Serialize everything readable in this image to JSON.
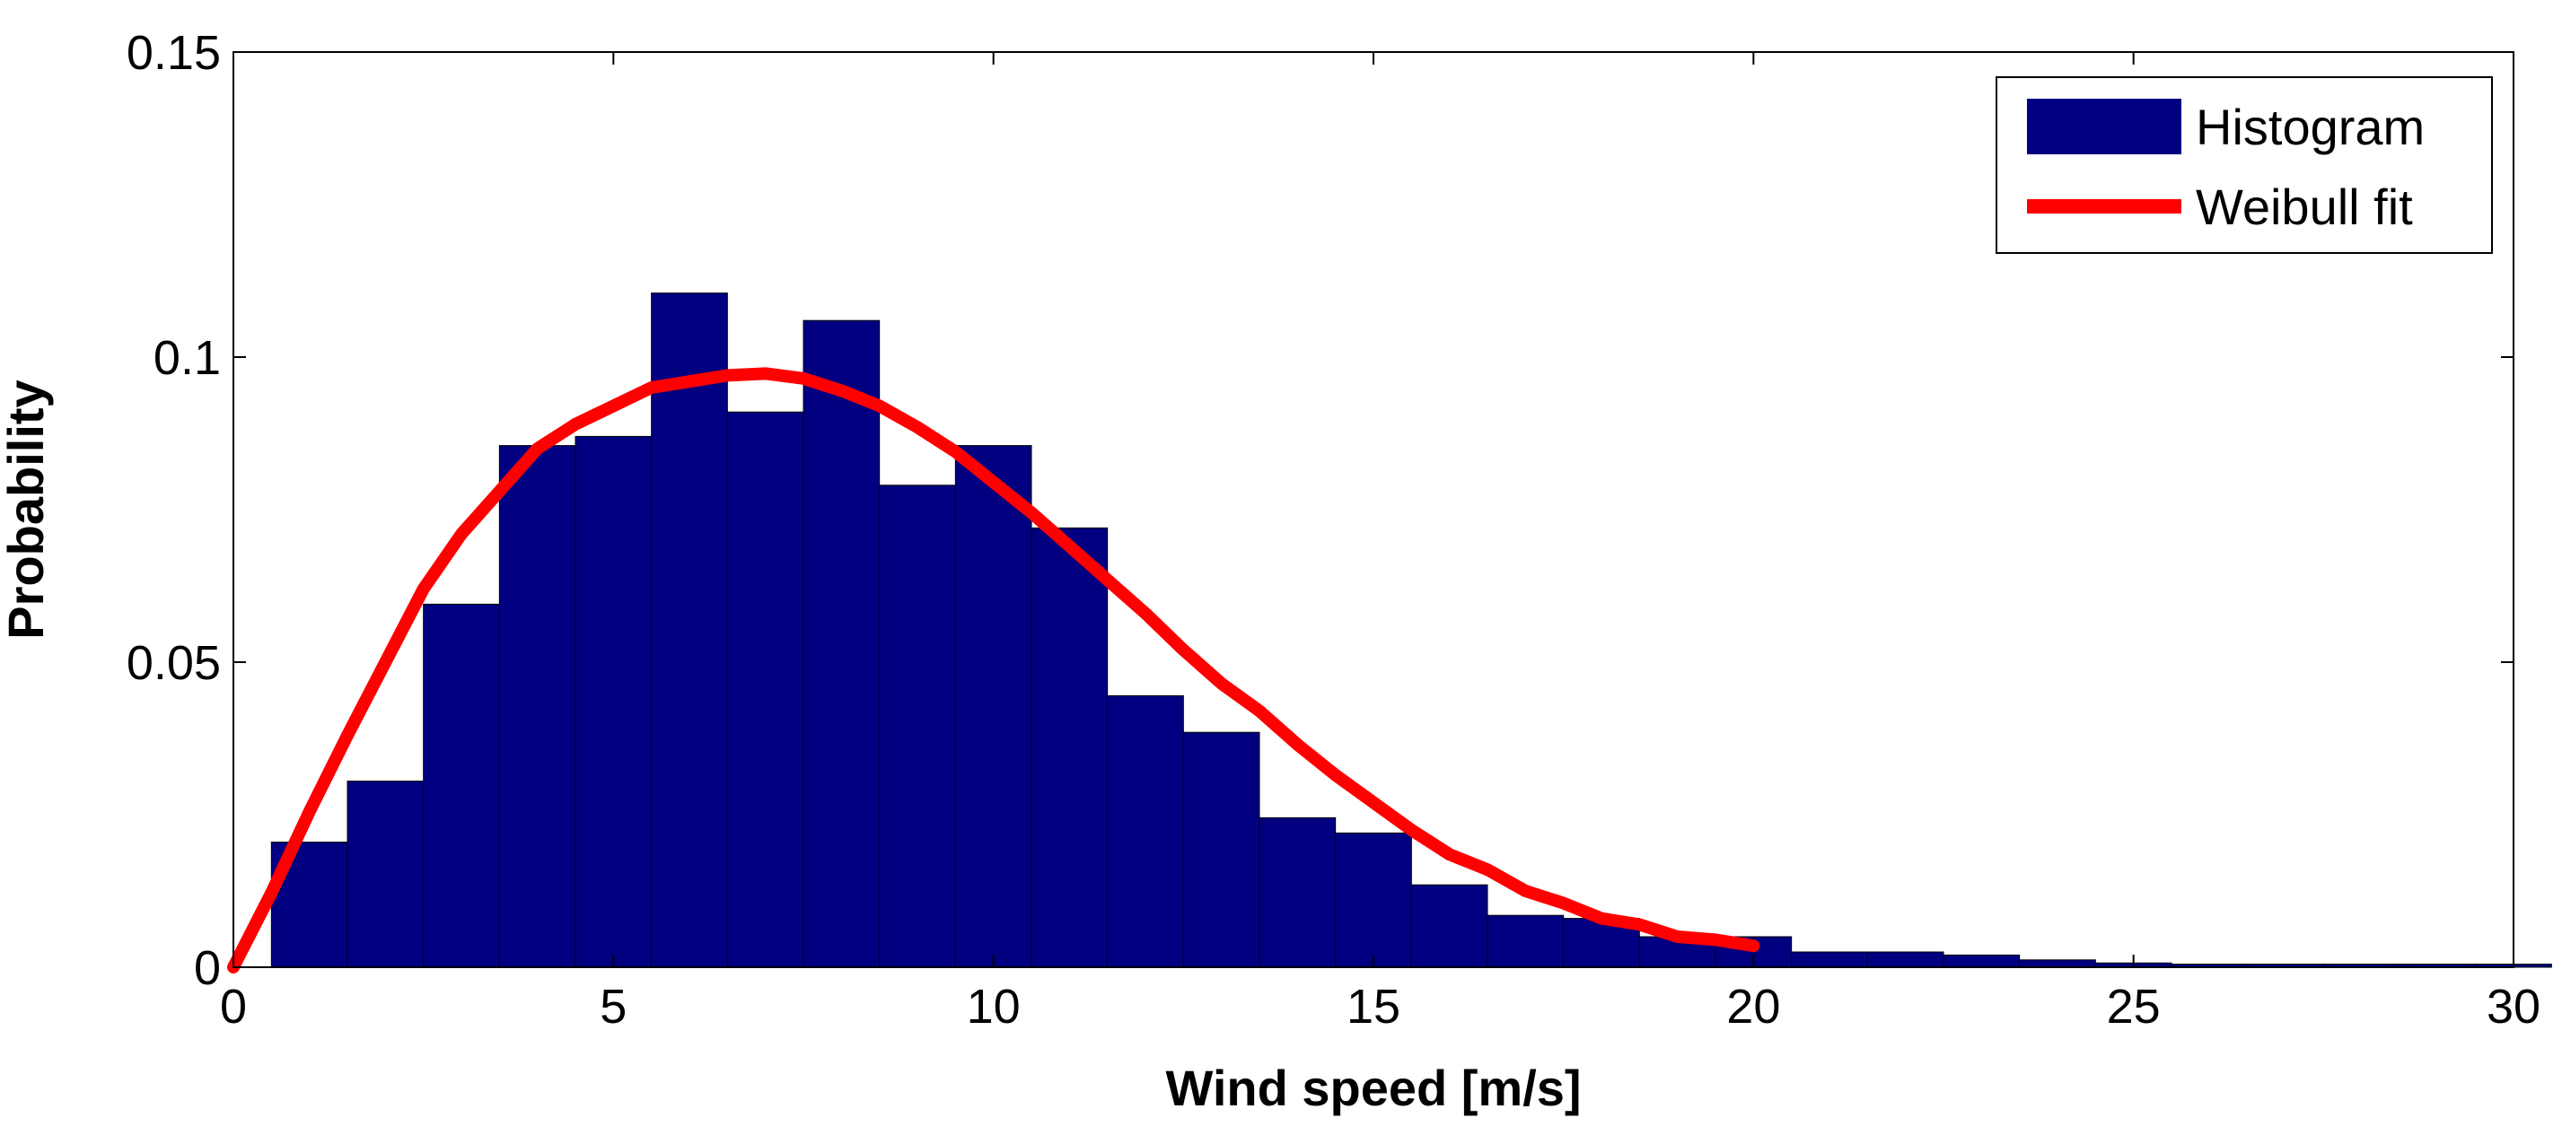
{
  "chart_data": {
    "type": "bar",
    "title": "",
    "xlabel": "Wind speed [m/s]",
    "ylabel": "Probability",
    "xlim": [
      0,
      30
    ],
    "ylim": [
      0,
      0.15
    ],
    "x_ticks": [
      0,
      5,
      10,
      15,
      20,
      25,
      30
    ],
    "x_tick_labels": [
      "0",
      "5",
      "10",
      "15",
      "20",
      "25",
      "30"
    ],
    "y_ticks": [
      0,
      0.05,
      0.1,
      0.15
    ],
    "y_tick_labels": [
      "0",
      "0.05",
      "0.1",
      "0.15"
    ],
    "grid": false,
    "legend_position": "top-right",
    "series": [
      {
        "name": "Histogram",
        "kind": "bar",
        "color": "#000080",
        "bin_width": 1,
        "x": [
          1,
          2,
          3,
          4,
          5,
          6,
          7,
          8,
          9,
          10,
          11,
          12,
          13,
          14,
          15,
          16,
          17,
          18,
          19,
          20,
          21,
          22,
          23,
          24,
          25,
          26,
          27,
          28,
          29,
          30
        ],
        "values": [
          0.0205,
          0.0305,
          0.0595,
          0.0855,
          0.087,
          0.1105,
          0.091,
          0.106,
          0.079,
          0.0855,
          0.072,
          0.0445,
          0.0385,
          0.0245,
          0.022,
          0.0135,
          0.0085,
          0.008,
          0.005,
          0.005,
          0.0025,
          0.0025,
          0.002,
          0.0012,
          0.0007,
          0.0005,
          0.0005,
          0.0005,
          0.0005,
          0.0005
        ]
      },
      {
        "name": "Weibull fit",
        "kind": "line",
        "color": "#ff0000",
        "x": [
          0,
          0.5,
          1,
          1.5,
          2,
          2.5,
          3,
          3.5,
          4,
          4.5,
          5,
          5.5,
          6,
          6.5,
          7,
          7.5,
          8,
          8.5,
          9,
          9.5,
          10,
          10.5,
          11,
          11.5,
          12,
          12.5,
          13,
          13.5,
          14,
          14.5,
          15,
          15.5,
          16,
          16.5,
          17,
          17.5,
          18,
          18.5,
          19,
          19.5,
          20
        ],
        "y": [
          0,
          0.0122,
          0.0255,
          0.038,
          0.05,
          0.062,
          0.071,
          0.078,
          0.085,
          0.089,
          0.092,
          0.095,
          0.096,
          0.097,
          0.0973,
          0.0965,
          0.0945,
          0.092,
          0.0885,
          0.0845,
          0.0795,
          0.0745,
          0.069,
          0.0635,
          0.058,
          0.052,
          0.0465,
          0.042,
          0.0365,
          0.0315,
          0.027,
          0.0225,
          0.0185,
          0.016,
          0.0125,
          0.0105,
          0.008,
          0.007,
          0.005,
          0.0045,
          0.0035
        ]
      }
    ]
  }
}
